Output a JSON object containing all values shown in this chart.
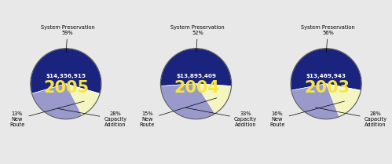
{
  "charts": [
    {
      "year": "2005",
      "amount": "$14,356,915",
      "slices": [
        59,
        13,
        28
      ],
      "sp_label": "System Preservation\n59%",
      "nr_label": "13%\nNew\nRoute",
      "ca_label": "28%\nCapacity\nAddition"
    },
    {
      "year": "2004",
      "amount": "$13,895,409",
      "slices": [
        52,
        15,
        33
      ],
      "sp_label": "System Preservation\n52%",
      "nr_label": "15%\nNew\nRoute",
      "ca_label": "33%\nCapacity\nAddition"
    },
    {
      "year": "2003",
      "amount": "$13,469,943",
      "slices": [
        56,
        16,
        28
      ],
      "sp_label": "System Preservation\n56%",
      "nr_label": "16%\nNew\nRoute",
      "ca_label": "28%\nCapacity\nAddition"
    }
  ],
  "dark_blue": "#1a237e",
  "light_yellow": "#f5f5c0",
  "light_blue": "#9999cc",
  "year_color": "#f5e642",
  "amount_color": "#ffffff",
  "bg_color": "#e8e8e8",
  "outline_color": "#555555"
}
